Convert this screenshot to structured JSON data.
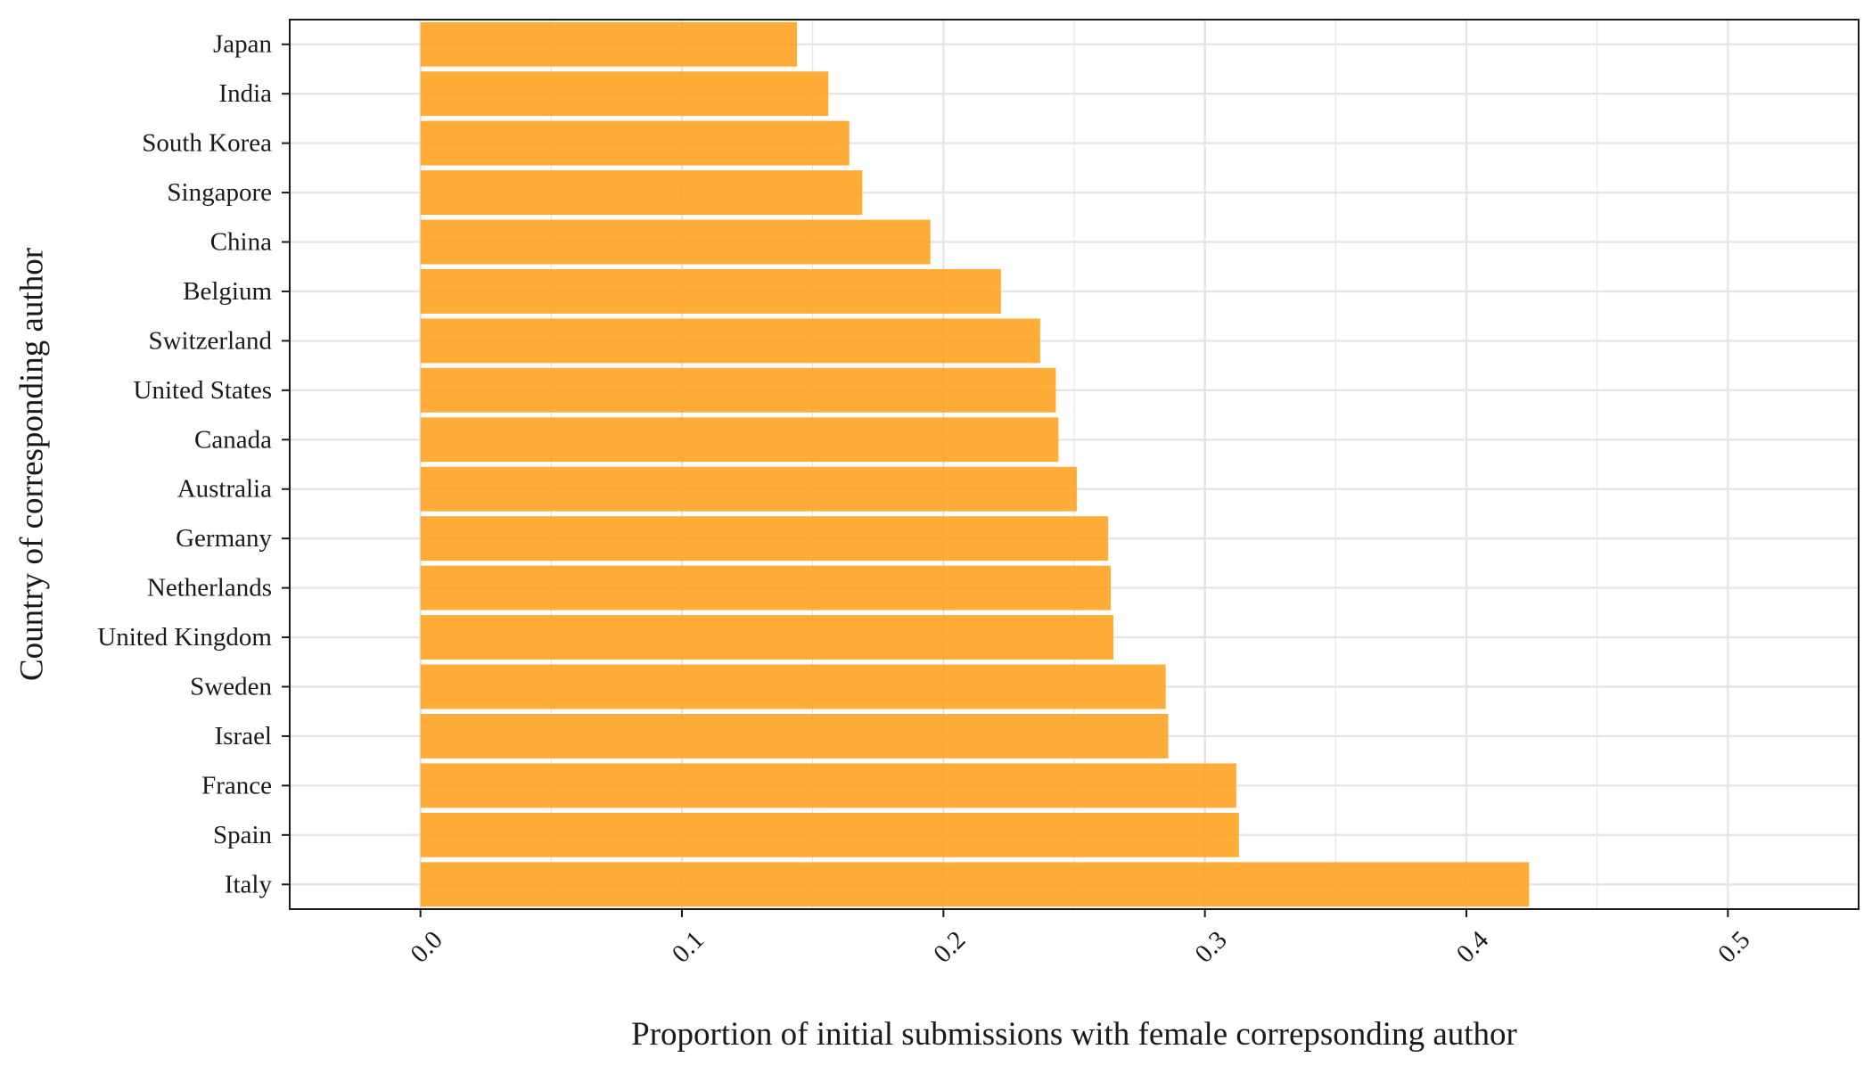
{
  "chart_data": {
    "type": "bar",
    "orientation": "horizontal",
    "title": "",
    "xlabel": "Proportion of initial submissions with female correpsonding author",
    "ylabel": "Country of corresponding author",
    "xlim": [
      -0.05,
      0.55
    ],
    "xticks": [
      "0.0",
      "0.1",
      "0.2",
      "0.3",
      "0.4",
      "0.5"
    ],
    "xtick_values": [
      0.0,
      0.1,
      0.2,
      0.3,
      0.4,
      0.5
    ],
    "categories": [
      "Japan",
      "India",
      "South Korea",
      "Singapore",
      "China",
      "Belgium",
      "Switzerland",
      "United States",
      "Canada",
      "Australia",
      "Germany",
      "Netherlands",
      "United Kingdom",
      "Sweden",
      "Israel",
      "France",
      "Spain",
      "Italy"
    ],
    "values": [
      0.144,
      0.156,
      0.164,
      0.169,
      0.195,
      0.222,
      0.237,
      0.243,
      0.244,
      0.251,
      0.263,
      0.264,
      0.265,
      0.285,
      0.286,
      0.312,
      0.313,
      0.424
    ],
    "grid": true,
    "bar_color": "#FFA01E",
    "bar_opacity": 0.88,
    "grid_color": "#e5e5e5",
    "axis_color": "#1a1a1a"
  }
}
